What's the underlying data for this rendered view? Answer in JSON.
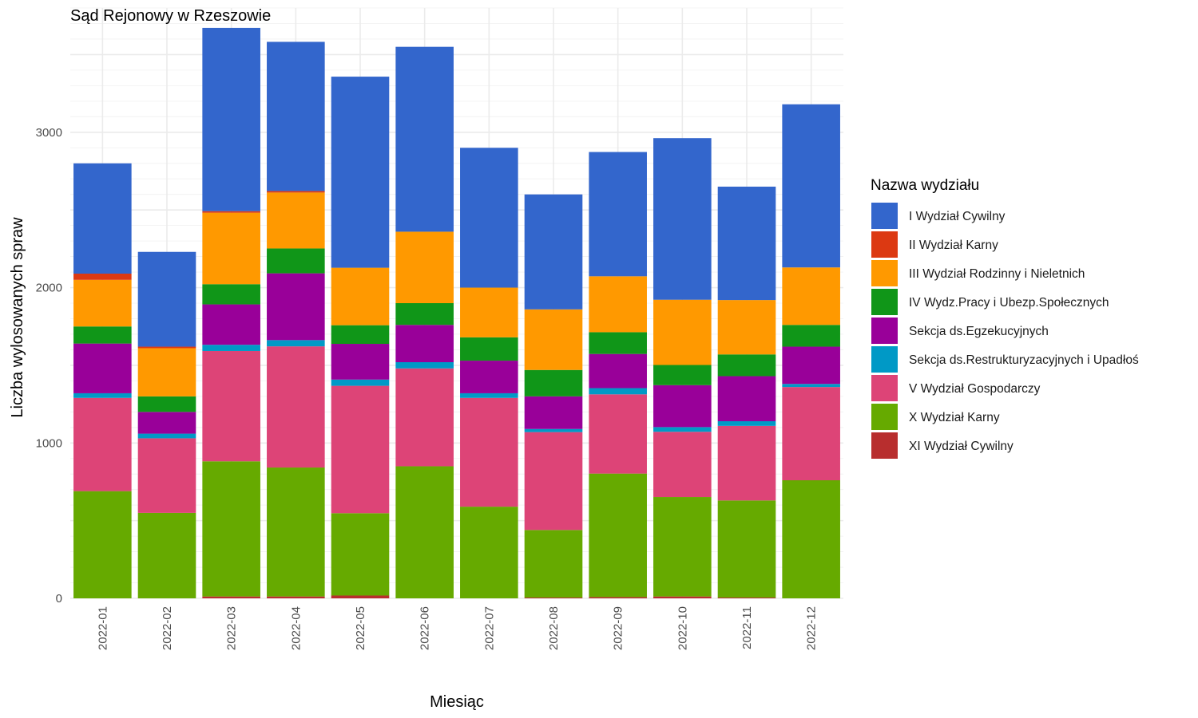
{
  "chart_data": {
    "type": "bar",
    "stacked": true,
    "title": "Sąd Rejonowy w Rzeszowie",
    "xlabel": "Miesiąc",
    "ylabel": "Liczba wylosowanych spraw",
    "ylim": [
      0,
      3800
    ],
    "yticks": [
      0,
      1000,
      2000,
      3000
    ],
    "grid": true,
    "legend_title": "Nazwa wydziału",
    "legend_position": "right",
    "categories": [
      "2022-01",
      "2022-02",
      "2022-03",
      "2022-04",
      "2022-05",
      "2022-06",
      "2022-07",
      "2022-08",
      "2022-09",
      "2022-10",
      "2022-11",
      "2022-12"
    ],
    "series": [
      {
        "name": "I Wydział Cywilny",
        "color": "#3366cc",
        "values": [
          710,
          610,
          1180,
          960,
          1230,
          1190,
          900,
          740,
          800,
          1040,
          730,
          1050
        ]
      },
      {
        "name": "II Wydział Karny",
        "color": "#dc3912",
        "values": [
          40,
          10,
          10,
          10,
          0,
          0,
          0,
          0,
          0,
          0,
          0,
          0
        ]
      },
      {
        "name": "III Wydział Rodzinny i Nieletnich",
        "color": "#ff9900",
        "values": [
          300,
          310,
          460,
          360,
          370,
          460,
          320,
          390,
          360,
          420,
          350,
          370
        ]
      },
      {
        "name": "IV Wydz.Pracy i Ubezp.Społecznych",
        "color": "#109618",
        "values": [
          110,
          100,
          130,
          160,
          120,
          140,
          150,
          170,
          140,
          130,
          140,
          140
        ]
      },
      {
        "name": "Sekcja ds.Egzekucyjnych",
        "color": "#990099",
        "values": [
          320,
          140,
          260,
          430,
          230,
          240,
          210,
          210,
          220,
          270,
          290,
          240
        ]
      },
      {
        "name": "Sekcja ds.Restrukturyzacyjnych i Upadłoś",
        "color": "#0099c6",
        "values": [
          30,
          30,
          40,
          40,
          40,
          40,
          30,
          20,
          40,
          30,
          30,
          20
        ]
      },
      {
        "name": "V Wydział Gospodarczy",
        "color": "#dd4477",
        "values": [
          600,
          480,
          710,
          780,
          820,
          630,
          700,
          630,
          510,
          420,
          480,
          600
        ]
      },
      {
        "name": "X Wydział Karny",
        "color": "#66aa00",
        "values": [
          690,
          550,
          870,
          830,
          530,
          850,
          590,
          435,
          795,
          640,
          625,
          760
        ]
      },
      {
        "name": "XI Wydział Cywilny",
        "color": "#b82e2e",
        "values": [
          0,
          0,
          12,
          12,
          18,
          0,
          0,
          5,
          8,
          12,
          5,
          0
        ]
      }
    ]
  }
}
